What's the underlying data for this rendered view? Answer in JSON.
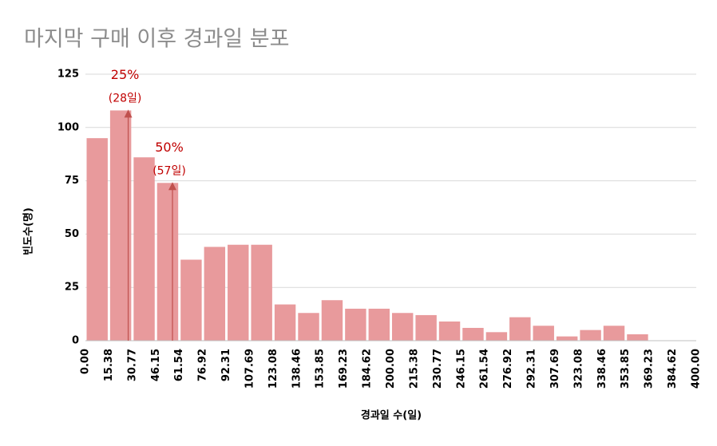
{
  "chart_data": {
    "type": "histogram",
    "title": "마지막 구매 이후 경과일 분포",
    "xlabel": "경과일 수(일)",
    "ylabel": "빈도수(명)",
    "bins": [
      0,
      15.38,
      30.77,
      46.15,
      61.54,
      76.92,
      92.31,
      107.69,
      123.08,
      138.46,
      153.85,
      169.23,
      184.62,
      200,
      215.38,
      230.77,
      246.15,
      261.54,
      276.92,
      292.31,
      307.69,
      323.08,
      338.46,
      353.85,
      369.23,
      384.62,
      400
    ],
    "values": [
      95,
      108,
      86,
      74,
      38,
      44,
      45,
      45,
      17,
      13,
      19,
      15,
      15,
      13,
      12,
      9,
      6,
      4,
      11,
      7,
      2,
      5,
      7,
      3,
      0,
      0
    ],
    "color": "#e89a9c",
    "xlim": [
      0,
      400
    ],
    "xticks": [
      {
        "value": 0,
        "label": "0.00"
      },
      {
        "value": 15.38,
        "label": "15.38"
      },
      {
        "value": 30.77,
        "label": "30.77"
      },
      {
        "value": 46.15,
        "label": "46.15"
      },
      {
        "value": 61.54,
        "label": "61.54"
      },
      {
        "value": 76.92,
        "label": "76.92"
      },
      {
        "value": 92.31,
        "label": "92.31"
      },
      {
        "value": 107.69,
        "label": "107.69"
      },
      {
        "value": 123.08,
        "label": "123.08"
      },
      {
        "value": 138.46,
        "label": "138.46"
      },
      {
        "value": 153.85,
        "label": "153.85"
      },
      {
        "value": 169.23,
        "label": "169.23"
      },
      {
        "value": 184.62,
        "label": "184.62"
      },
      {
        "value": 200,
        "label": "200.00"
      },
      {
        "value": 215.38,
        "label": "215.38"
      },
      {
        "value": 230.77,
        "label": "230.77"
      },
      {
        "value": 246.15,
        "label": "246.15"
      },
      {
        "value": 261.54,
        "label": "261.54"
      },
      {
        "value": 276.92,
        "label": "276.92"
      },
      {
        "value": 292.31,
        "label": "292.31"
      },
      {
        "value": 307.69,
        "label": "307.69"
      },
      {
        "value": 323.08,
        "label": "323.08"
      },
      {
        "value": 338.46,
        "label": "338.46"
      },
      {
        "value": 353.85,
        "label": "353.85"
      },
      {
        "value": 369.23,
        "label": "369.23"
      },
      {
        "value": 384.62,
        "label": "384.62"
      },
      {
        "value": 400,
        "label": "400.00"
      }
    ],
    "ylim": [
      0,
      125
    ],
    "yticks": [
      0,
      25,
      50,
      75,
      100,
      125
    ],
    "grid": true,
    "annotations": [
      {
        "text": "25%",
        "subtext": "(28일)",
        "x": 28,
        "y": 108
      },
      {
        "text": "50%",
        "subtext": "(57일)",
        "x": 57,
        "y": 74
      }
    ]
  }
}
